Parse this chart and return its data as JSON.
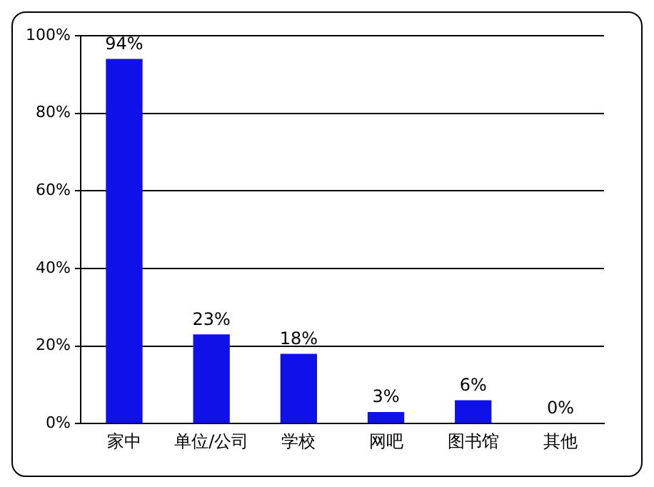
{
  "chart_data": {
    "type": "bar",
    "categories": [
      "家中",
      "单位/公司",
      "学校",
      "网吧",
      "图书馆",
      "其他"
    ],
    "values": [
      94,
      23,
      18,
      3,
      6,
      0
    ],
    "value_labels": [
      "94%",
      "23%",
      "18%",
      "3%",
      "6%",
      "0%"
    ],
    "color": "#1010e8",
    "ylim": [
      0,
      100
    ],
    "yticks": [
      {
        "value": 0,
        "label": "0%"
      },
      {
        "value": 20,
        "label": "20%"
      },
      {
        "value": 40,
        "label": "40%"
      },
      {
        "value": 60,
        "label": "60%"
      },
      {
        "value": 80,
        "label": "80%"
      },
      {
        "value": 100,
        "label": "100%"
      }
    ],
    "grid": "y"
  }
}
